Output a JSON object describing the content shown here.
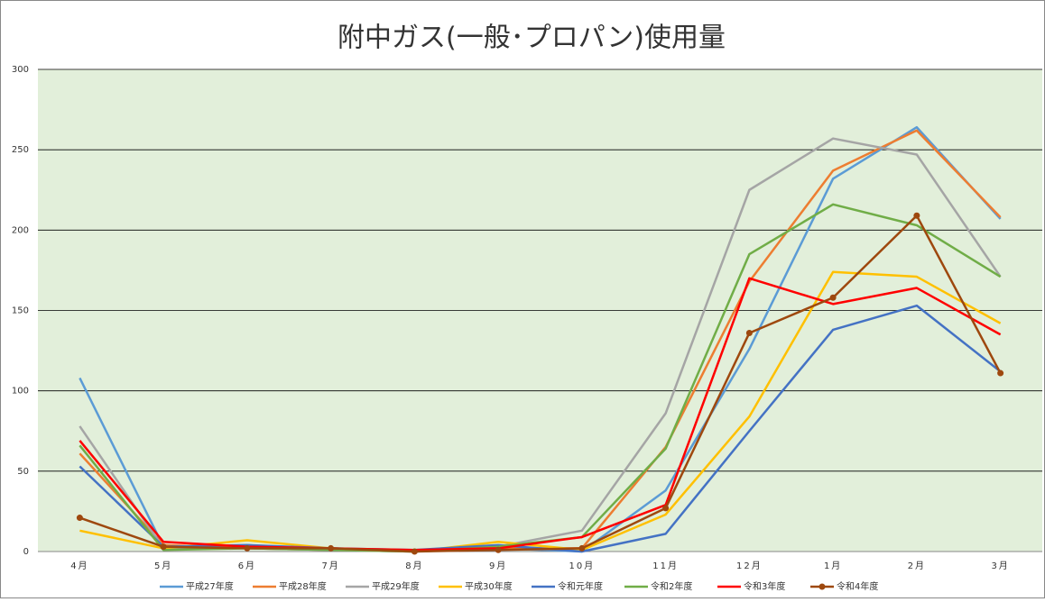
{
  "chart_data": {
    "type": "line",
    "title": "附中ガス(一般･プロパン)使用量",
    "categories": [
      "4月",
      "5月",
      "6月",
      "7月",
      "8月",
      "9月",
      "10月",
      "11月",
      "12月",
      "1月",
      "2月",
      "3月"
    ],
    "ylim": [
      0,
      300
    ],
    "yticks": [
      0,
      50,
      100,
      150,
      200,
      250,
      300
    ],
    "grid": true,
    "legend": "bottom",
    "series": [
      {
        "name": "平成27年度",
        "color": "#5b9bd5",
        "values": [
          108,
          3,
          4,
          1,
          0,
          2,
          0,
          38,
          126,
          232,
          264,
          207
        ]
      },
      {
        "name": "平成28年度",
        "color": "#ed7d31",
        "values": [
          61,
          4,
          2,
          1,
          0,
          2,
          2,
          65,
          168,
          237,
          262,
          208
        ]
      },
      {
        "name": "平成29年度",
        "color": "#a5a5a5",
        "values": [
          78,
          2,
          2,
          1,
          0,
          3,
          13,
          86,
          225,
          257,
          247,
          171
        ]
      },
      {
        "name": "平成30年度",
        "color": "#ffc000",
        "values": [
          13,
          2,
          7,
          2,
          0,
          6,
          1,
          23,
          84,
          174,
          171,
          142
        ]
      },
      {
        "name": "令和元年度",
        "color": "#4472c4",
        "values": [
          53,
          3,
          4,
          2,
          1,
          4,
          0,
          11,
          75,
          138,
          153,
          112
        ]
      },
      {
        "name": "令和2年度",
        "color": "#70ad47",
        "values": [
          66,
          1,
          2,
          1,
          0,
          3,
          9,
          64,
          185,
          216,
          203,
          171
        ]
      },
      {
        "name": "令和3年度",
        "color": "#ff0000",
        "values": [
          69,
          6,
          3,
          2,
          1,
          2,
          9,
          29,
          170,
          154,
          164,
          135
        ]
      },
      {
        "name": "令和4年度",
        "color": "#9e480e",
        "markers": true,
        "values": [
          21,
          3,
          2,
          2,
          0,
          1,
          2,
          27,
          136,
          158,
          209,
          111
        ]
      }
    ]
  }
}
